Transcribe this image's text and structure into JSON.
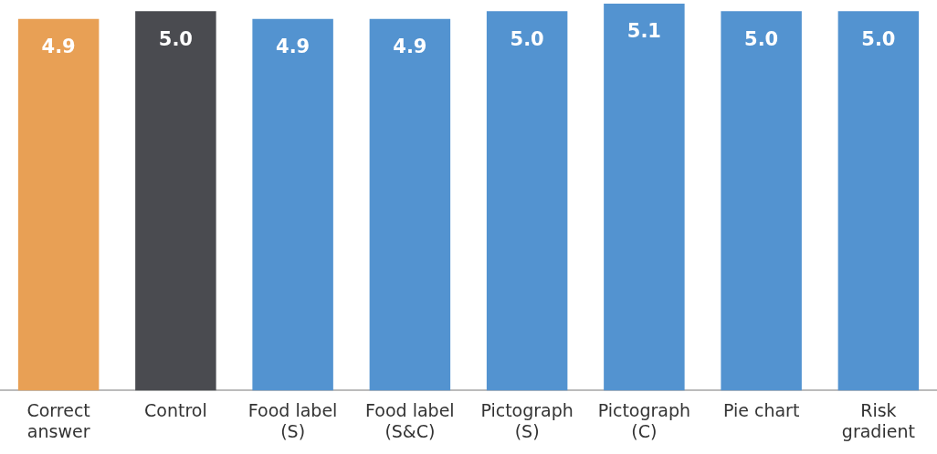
{
  "chart_data": {
    "type": "bar",
    "categories": [
      "Correct\nanswer",
      "Control",
      "Food label\n(S)",
      "Food label\n(S&C)",
      "Pictograph\n(S)",
      "Pictograph\n(C)",
      "Pie chart",
      "Risk\ngradient"
    ],
    "values": [
      4.9,
      5.0,
      4.9,
      4.9,
      5.0,
      5.1,
      5.0,
      5.0
    ],
    "colors": [
      "#e8a055",
      "#4a4b50",
      "#5393d0",
      "#5393d0",
      "#5393d0",
      "#5393d0",
      "#5393d0",
      "#5393d0"
    ],
    "ylim": [
      0,
      5.1
    ],
    "tick_labels": "x",
    "grid": false,
    "legend": false,
    "value_labels": [
      "4.9",
      "5.0",
      "4.9",
      "4.9",
      "5.0",
      "5.1",
      "5.0",
      "5.0"
    ]
  }
}
